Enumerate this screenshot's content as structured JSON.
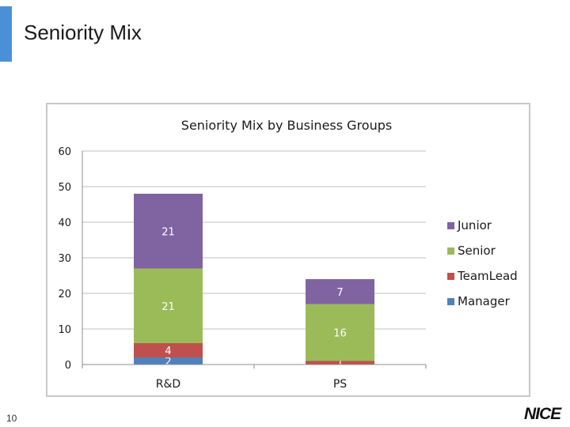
{
  "slide": {
    "title": "Seniority Mix",
    "page_number": "10",
    "logo_text": "NICE"
  },
  "colors": {
    "accent": "#4a90d9",
    "manager": "#4f81bd",
    "teamlead": "#c0504d",
    "senior": "#9bbb59",
    "junior": "#8064a2"
  },
  "chart_data": {
    "type": "bar",
    "stacked": true,
    "title": "Seniority Mix by Business Groups",
    "categories": [
      "R&D",
      "PS"
    ],
    "ylim": [
      0,
      60
    ],
    "yticks": [
      0,
      10,
      20,
      30,
      40,
      50,
      60
    ],
    "grid": true,
    "legend_position": "right",
    "series": [
      {
        "name": "Manager",
        "values": [
          2,
          0
        ],
        "labels": [
          "2",
          "0"
        ],
        "color": "#4f81bd"
      },
      {
        "name": "TeamLead",
        "values": [
          4,
          1
        ],
        "labels": [
          "4",
          "1"
        ],
        "color": "#c0504d"
      },
      {
        "name": "Senior",
        "values": [
          21,
          16
        ],
        "labels": [
          "21",
          "16"
        ],
        "color": "#9bbb59"
      },
      {
        "name": "Junior",
        "values": [
          21,
          7
        ],
        "labels": [
          "21",
          "7"
        ],
        "color": "#8064a2"
      }
    ],
    "legend_order": [
      "Junior",
      "Senior",
      "TeamLead",
      "Manager"
    ]
  }
}
